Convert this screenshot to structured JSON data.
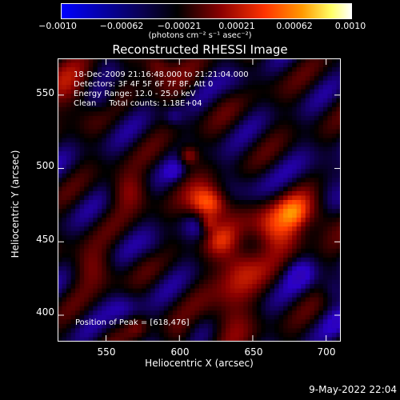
{
  "colorbar": {
    "ticks": [
      "−0.0010",
      "−0.00062",
      "−0.00021",
      "0.00021",
      "0.00062",
      "0.0010"
    ],
    "units": "(photons cm⁻² s⁻¹ asec⁻²)",
    "colors": [
      "#0000ff",
      "#000000",
      "#8b0000",
      "#ff3300",
      "#ff9900",
      "#ffff66",
      "#ffffff"
    ]
  },
  "chart_data": {
    "type": "heatmap",
    "title": "Reconstructed RHESSI Image",
    "xlabel": "Heliocentric X (arcsec)",
    "ylabel": "Heliocentric Y (arcsec)",
    "xlim": [
      517,
      710
    ],
    "ylim": [
      382,
      575
    ],
    "xticks": [
      550,
      600,
      650,
      700
    ],
    "yticks": [
      400,
      450,
      500,
      550
    ],
    "clim": [
      -0.001,
      0.001
    ],
    "colormap": [
      "#3a0a8c",
      "#2a00c8",
      "#000000",
      "#8b0000",
      "#ff3a00",
      "#ff9a00",
      "#ffff70"
    ],
    "annotations": [
      "18-Dec-2009 21:16:48.000 to 21:21:04.000",
      "Detectors: 3F 4F 5F 6F 7F 8F, Att 0",
      "Energy Range: 12.0 - 25.0 keV",
      "Clean     Total counts: 1.18E+04"
    ],
    "peak_label": "Position of Peak = [618,476]",
    "peak": [
      618,
      476
    ]
  },
  "footer": {
    "date": "9-May-2022 22:04"
  }
}
